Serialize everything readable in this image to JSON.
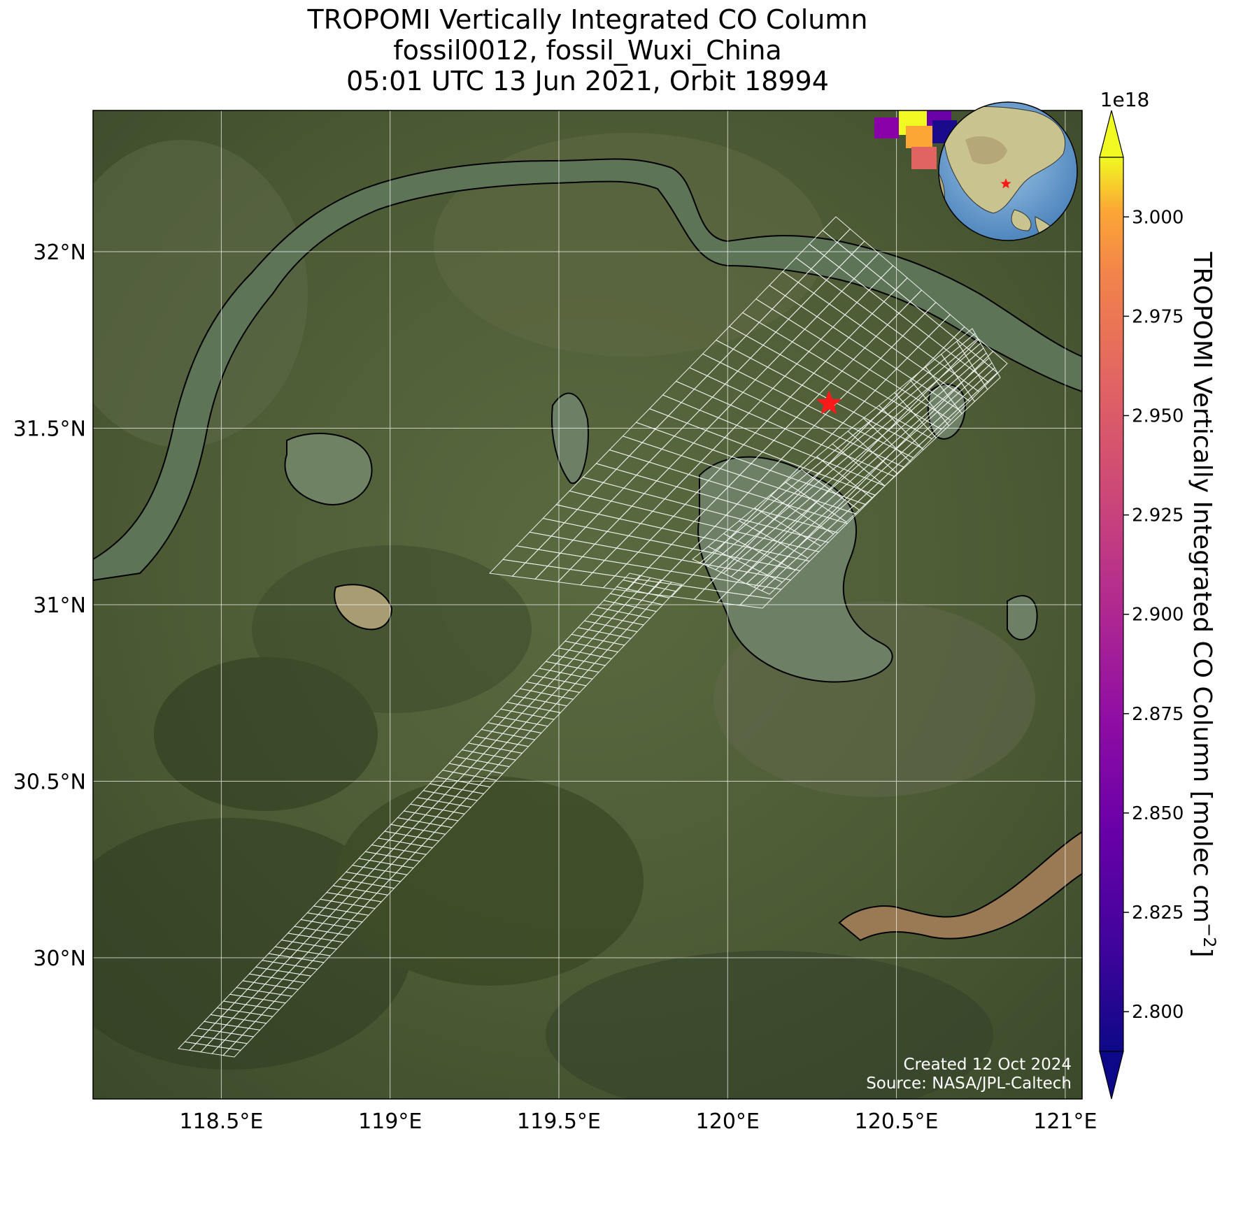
{
  "title": {
    "line1": "TROPOMI Vertically Integrated CO Column",
    "line2": "fossil0012, fossil_Wuxi_China",
    "line3": "05:01 UTC 13 Jun 2021, Orbit 18994"
  },
  "map": {
    "lon_range": [
      118.12,
      121.05
    ],
    "lat_range": [
      29.6,
      32.4
    ],
    "lon_ticks": [
      {
        "value": 118.5,
        "label": "118.5°E"
      },
      {
        "value": 119.0,
        "label": "119°E"
      },
      {
        "value": 119.5,
        "label": "119.5°E"
      },
      {
        "value": 120.0,
        "label": "120°E"
      },
      {
        "value": 120.5,
        "label": "120.5°E"
      },
      {
        "value": 121.0,
        "label": "121°E"
      }
    ],
    "lat_ticks": [
      {
        "value": 32.0,
        "label": "32°N"
      },
      {
        "value": 31.5,
        "label": "31.5°N"
      },
      {
        "value": 31.0,
        "label": "31°N"
      },
      {
        "value": 30.5,
        "label": "30.5°N"
      },
      {
        "value": 30.0,
        "label": "30°N"
      }
    ],
    "gridlines": true,
    "basemap": "satellite-imagery",
    "target": {
      "lon": 120.3,
      "lat": 31.57,
      "marker": "red-star"
    }
  },
  "colorbar": {
    "colormap": "plasma",
    "range": [
      2.79,
      3.015
    ],
    "ticks": [
      "2.800",
      "2.825",
      "2.850",
      "2.875",
      "2.900",
      "2.925",
      "2.950",
      "2.975",
      "3.000"
    ],
    "tick_values": [
      2.8,
      2.825,
      2.85,
      2.875,
      2.9,
      2.925,
      2.95,
      2.975,
      3.0
    ],
    "exponent": "1e18",
    "label": "TROPOMI Vertically Integrated CO Column [molec cm",
    "label_sup": "−2",
    "label_close": "]",
    "extend": "both"
  },
  "credits": {
    "created": "Created 12 Oct 2024",
    "source": "Source: NASA/JPL-Caltech"
  },
  "inset": {
    "description_icon": "globe-icon",
    "target_marker": "red-star"
  }
}
